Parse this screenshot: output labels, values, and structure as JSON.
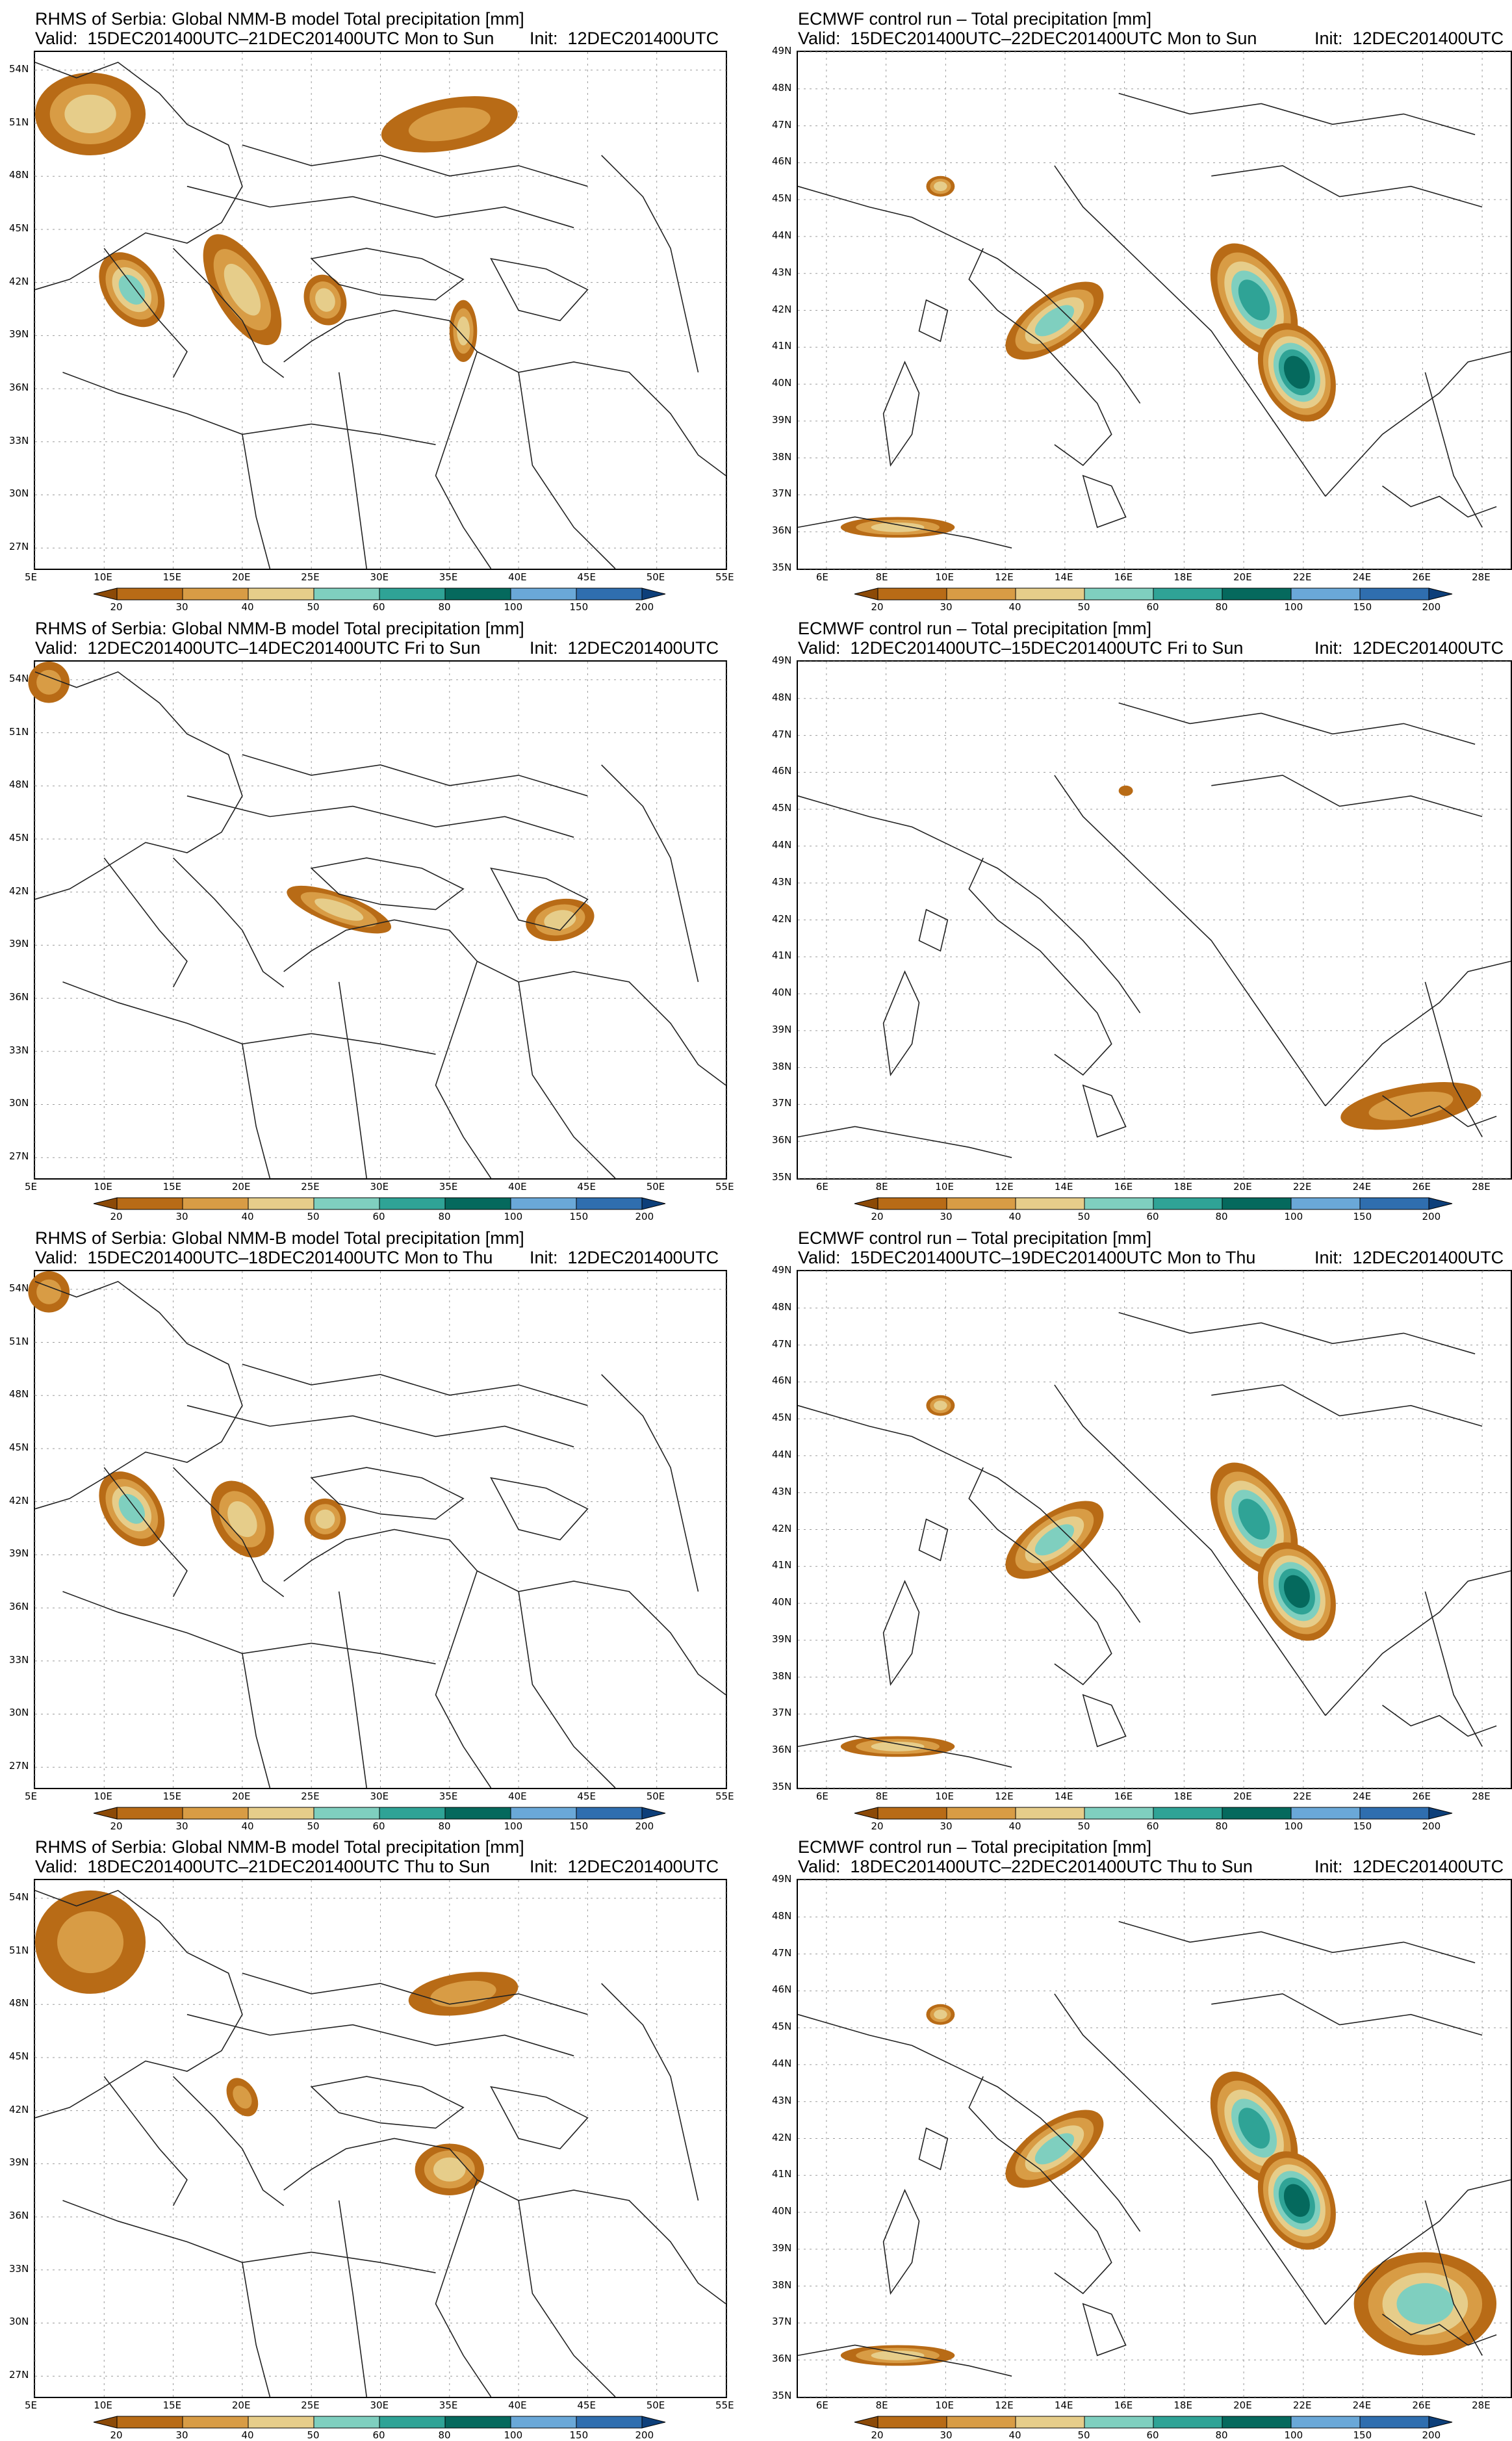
{
  "colorbar": {
    "labels": [
      "20",
      "30",
      "40",
      "50",
      "60",
      "80",
      "100",
      "150",
      "200"
    ],
    "colors": [
      "#8c4a07",
      "#b86b16",
      "#d89c45",
      "#e6cd8a",
      "#7fcfbf",
      "#2fa396",
      "#05695d",
      "#6aa8d8",
      "#2f6eaf",
      "#0d3f7a"
    ]
  },
  "panels": [
    {
      "model": "nmmb",
      "title_line1": "RHMS of Serbia: Global NMM-B model Total precipitation [mm]",
      "title_line2": "Valid:  15DEC201400UTC–21DEC201400UTC Mon to Sun",
      "init": "Init:  12DEC201400UTC",
      "lat_labels": [
        "54N",
        "51N",
        "48N",
        "45N",
        "42N",
        "39N",
        "36N",
        "33N",
        "30N",
        "27N"
      ],
      "lon_labels": [
        "5E",
        "10E",
        "15E",
        "20E",
        "25E",
        "30E",
        "35E",
        "40E",
        "45E",
        "50E",
        "55E"
      ]
    },
    {
      "model": "ecmwf",
      "title_line1": "ECMWF control run – Total precipitation [mm]",
      "title_line2": "Valid:  15DEC201400UTC–22DEC201400UTC Mon to Sun",
      "init": "Init:  12DEC201400UTC",
      "lat_labels": [
        "49N",
        "48N",
        "47N",
        "46N",
        "45N",
        "44N",
        "43N",
        "42N",
        "41N",
        "40N",
        "39N",
        "38N",
        "37N",
        "36N",
        "35N"
      ],
      "lon_labels": [
        "6E",
        "8E",
        "10E",
        "12E",
        "14E",
        "16E",
        "18E",
        "20E",
        "22E",
        "24E",
        "26E",
        "28E"
      ]
    },
    {
      "model": "nmmb",
      "title_line1": "RHMS of Serbia: Global NMM-B model Total precipitation [mm]",
      "title_line2": "Valid:  12DEC201400UTC–14DEC201400UTC Fri to Sun",
      "init": "Init:  12DEC201400UTC",
      "lat_labels": [
        "54N",
        "51N",
        "48N",
        "45N",
        "42N",
        "39N",
        "36N",
        "33N",
        "30N",
        "27N"
      ],
      "lon_labels": [
        "5E",
        "10E",
        "15E",
        "20E",
        "25E",
        "30E",
        "35E",
        "40E",
        "45E",
        "50E",
        "55E"
      ]
    },
    {
      "model": "ecmwf",
      "title_line1": "ECMWF control run – Total precipitation [mm]",
      "title_line2": "Valid:  12DEC201400UTC–15DEC201400UTC Fri to Sun",
      "init": "Init:  12DEC201400UTC",
      "lat_labels": [
        "49N",
        "48N",
        "47N",
        "46N",
        "45N",
        "44N",
        "43N",
        "42N",
        "41N",
        "40N",
        "39N",
        "38N",
        "37N",
        "36N",
        "35N"
      ],
      "lon_labels": [
        "6E",
        "8E",
        "10E",
        "12E",
        "14E",
        "16E",
        "18E",
        "20E",
        "22E",
        "24E",
        "26E",
        "28E"
      ]
    },
    {
      "model": "nmmb",
      "title_line1": "RHMS of Serbia: Global NMM-B model Total precipitation [mm]",
      "title_line2": "Valid:  15DEC201400UTC–18DEC201400UTC Mon to Thu",
      "init": "Init:  12DEC201400UTC",
      "lat_labels": [
        "54N",
        "51N",
        "48N",
        "45N",
        "42N",
        "39N",
        "36N",
        "33N",
        "30N",
        "27N"
      ],
      "lon_labels": [
        "5E",
        "10E",
        "15E",
        "20E",
        "25E",
        "30E",
        "35E",
        "40E",
        "45E",
        "50E",
        "55E"
      ]
    },
    {
      "model": "ecmwf",
      "title_line1": "ECMWF control run – Total precipitation [mm]",
      "title_line2": "Valid:  15DEC201400UTC–19DEC201400UTC Mon to Thu",
      "init": "Init:  12DEC201400UTC",
      "lat_labels": [
        "49N",
        "48N",
        "47N",
        "46N",
        "45N",
        "44N",
        "43N",
        "42N",
        "41N",
        "40N",
        "39N",
        "38N",
        "37N",
        "36N",
        "35N"
      ],
      "lon_labels": [
        "6E",
        "8E",
        "10E",
        "12E",
        "14E",
        "16E",
        "18E",
        "20E",
        "22E",
        "24E",
        "26E",
        "28E"
      ]
    },
    {
      "model": "nmmb",
      "title_line1": "RHMS of Serbia: Global NMM-B model Total precipitation [mm]",
      "title_line2": "Valid:  18DEC201400UTC–21DEC201400UTC Thu to Sun",
      "init": "Init:  12DEC201400UTC",
      "lat_labels": [
        "54N",
        "51N",
        "48N",
        "45N",
        "42N",
        "39N",
        "36N",
        "33N",
        "30N",
        "27N"
      ],
      "lon_labels": [
        "5E",
        "10E",
        "15E",
        "20E",
        "25E",
        "30E",
        "35E",
        "40E",
        "45E",
        "50E",
        "55E"
      ]
    },
    {
      "model": "ecmwf",
      "title_line1": "ECMWF control run – Total precipitation [mm]",
      "title_line2": "Valid:  18DEC201400UTC–22DEC201400UTC Thu to Sun",
      "init": "Init:  12DEC201400UTC",
      "lat_labels": [
        "49N",
        "48N",
        "47N",
        "46N",
        "45N",
        "44N",
        "43N",
        "42N",
        "41N",
        "40N",
        "39N",
        "38N",
        "37N",
        "36N",
        "35N"
      ],
      "lon_labels": [
        "6E",
        "8E",
        "10E",
        "12E",
        "14E",
        "16E",
        "18E",
        "20E",
        "22E",
        "24E",
        "26E",
        "28E"
      ]
    }
  ]
}
